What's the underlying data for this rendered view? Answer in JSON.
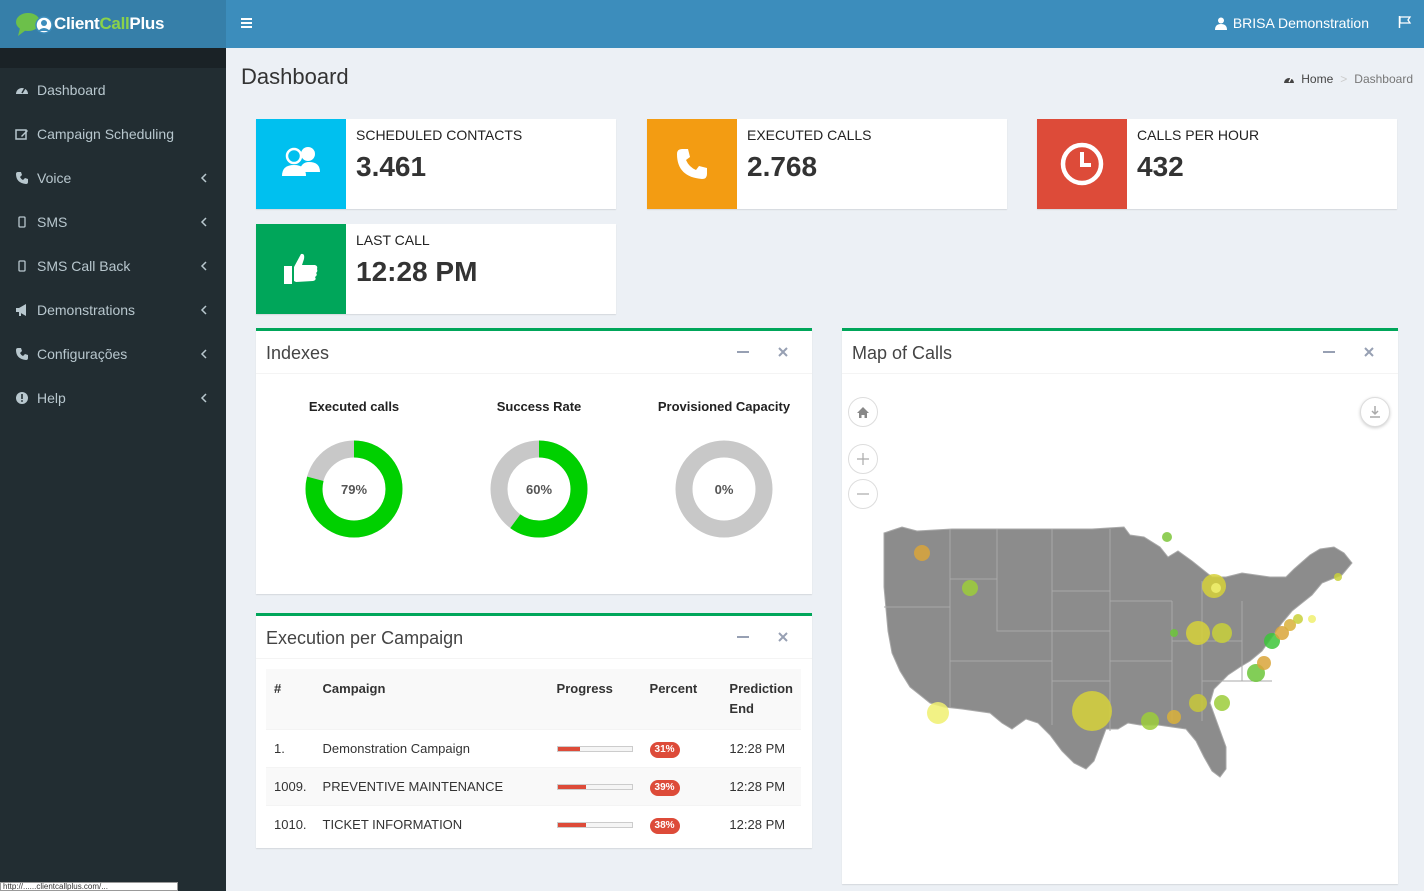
{
  "brand": {
    "part1": "Client",
    "part2": "Call",
    "part3": "Plus"
  },
  "sidebar": {
    "items": [
      {
        "label": "Dashboard",
        "icon": "dashboard-icon",
        "expandable": false
      },
      {
        "label": "Campaign Scheduling",
        "icon": "calendar-edit-icon",
        "expandable": false
      },
      {
        "label": "Voice",
        "icon": "phone-icon",
        "expandable": true
      },
      {
        "label": "SMS",
        "icon": "mobile-icon",
        "expandable": true
      },
      {
        "label": "SMS Call Back",
        "icon": "mobile-icon",
        "expandable": true
      },
      {
        "label": "Demonstrations",
        "icon": "bullhorn-icon",
        "expandable": true
      },
      {
        "label": "Configurações",
        "icon": "phone-icon",
        "expandable": true
      },
      {
        "label": "Help",
        "icon": "exclamation-circle-icon",
        "expandable": true
      }
    ],
    "status_url": "http://......clientcallplus.com/..."
  },
  "header": {
    "user": "BRISA Demonstration"
  },
  "page": {
    "title": "Dashboard"
  },
  "breadcrumb": {
    "home": "Home",
    "current": "Dashboard"
  },
  "info_boxes": [
    {
      "label": "SCHEDULED CONTACTS",
      "value": "3.461",
      "color": "#00c0ef",
      "icon": "users-icon"
    },
    {
      "label": "EXECUTED CALLS",
      "value": "2.768",
      "color": "#f39c12",
      "icon": "phone-icon"
    },
    {
      "label": "CALLS PER HOUR",
      "value": "432",
      "color": "#dd4b39",
      "icon": "clock-icon"
    },
    {
      "label": "LAST CALL",
      "value": "12:28 PM",
      "color": "#00a65a",
      "icon": "thumbs-up-icon"
    }
  ],
  "indexes": {
    "title": "Indexes",
    "donuts": [
      {
        "title": "Executed calls",
        "value": 79,
        "label": "79%"
      },
      {
        "title": "Success Rate",
        "value": 60,
        "label": "60%"
      },
      {
        "title": "Provisioned Capacity",
        "value": 0,
        "label": "0%"
      }
    ],
    "colors": {
      "fill": "#00d000",
      "track": "#c8c8c8"
    }
  },
  "campaigns": {
    "title": "Execution per Campaign",
    "columns": [
      "#",
      "Campaign",
      "Progress",
      "Percent",
      "Prediction End"
    ],
    "rows": [
      {
        "id": "1.",
        "name": "Demonstration Campaign",
        "progress": 31,
        "percent": "31%",
        "end": "12:28 PM"
      },
      {
        "id": "1009.",
        "name": "PREVENTIVE MAINTENANCE",
        "progress": 39,
        "percent": "39%",
        "end": "12:28 PM"
      },
      {
        "id": "1010.",
        "name": "TICKET INFORMATION",
        "progress": 38,
        "percent": "38%",
        "end": "12:28 PM"
      }
    ]
  },
  "map": {
    "title": "Map of Calls"
  }
}
